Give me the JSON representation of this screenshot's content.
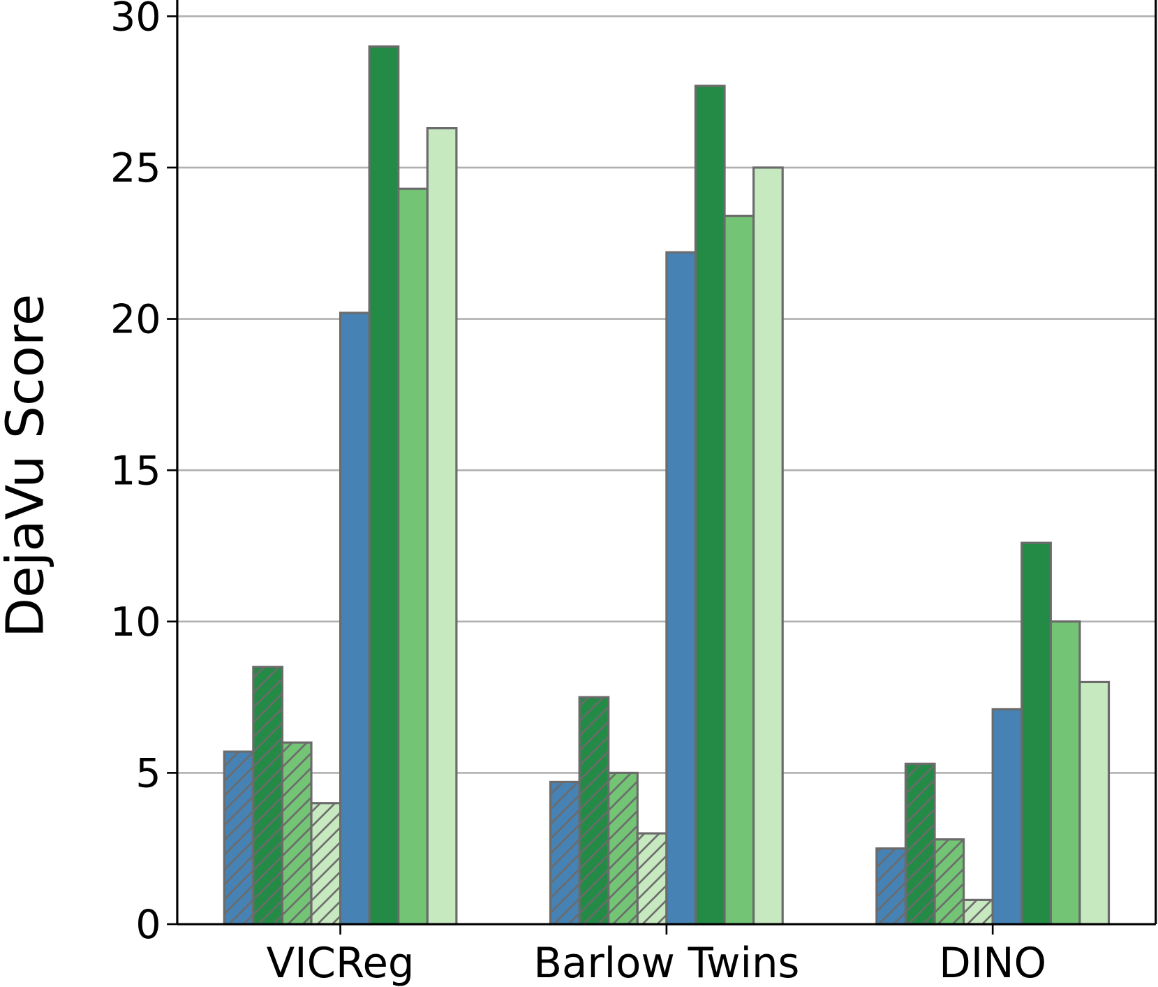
{
  "chart_data": {
    "type": "bar",
    "y_label": "DejaVu Score",
    "categories": [
      "VICReg",
      "Barlow Twins",
      "DINO"
    ],
    "series": [
      {
        "color": "#4682b4",
        "hatch": true,
        "values": [
          5.7,
          4.7,
          2.5
        ]
      },
      {
        "color": "#238b45",
        "hatch": true,
        "values": [
          8.5,
          7.5,
          5.3
        ]
      },
      {
        "color": "#74c476",
        "hatch": true,
        "values": [
          6.0,
          5.0,
          2.8
        ]
      },
      {
        "color": "#c7e9c0",
        "hatch": true,
        "values": [
          4.0,
          3.0,
          0.8
        ]
      },
      {
        "color": "#4682b4",
        "hatch": false,
        "values": [
          20.2,
          22.2,
          7.1
        ]
      },
      {
        "color": "#238b45",
        "hatch": false,
        "values": [
          29.0,
          27.7,
          12.6
        ]
      },
      {
        "color": "#74c476",
        "hatch": false,
        "values": [
          24.3,
          23.4,
          10.0
        ]
      },
      {
        "color": "#c7e9c0",
        "hatch": false,
        "values": [
          26.3,
          25.0,
          8.0
        ]
      }
    ],
    "ylim": [
      0,
      30
    ],
    "yticks": [
      0,
      5,
      10,
      15,
      20,
      25,
      30
    ],
    "grid": true
  }
}
